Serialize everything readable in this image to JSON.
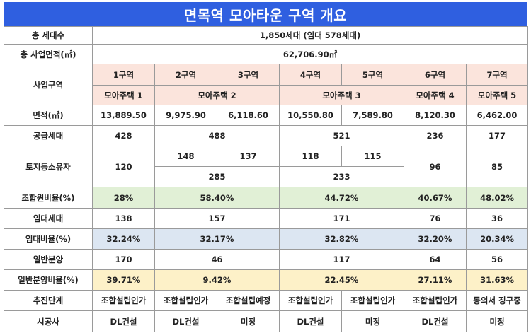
{
  "title": "면목역 모아타운 구역 개요",
  "summary": {
    "households_label": "총 세대수",
    "households_value": "1,850세대 (임대 578세대)",
    "area_label": "총 사업면적(㎡)",
    "area_value": "62,706.90㎡"
  },
  "header": {
    "zone_label": "사업구역",
    "zones": [
      "1구역",
      "2구역",
      "3구역",
      "4구역",
      "5구역",
      "6구역",
      "7구역"
    ],
    "housing": [
      "모아주택 1",
      "모아주택 2",
      "모아주택 3",
      "모아주택 4",
      "모아주택 5"
    ]
  },
  "rows": {
    "area": {
      "label": "면적(㎡)",
      "values": [
        "13,889.50",
        "9,975.90",
        "6,118.60",
        "10,550.80",
        "7,589.80",
        "8,120.30",
        "6,462.00"
      ]
    },
    "supply": {
      "label": "공급세대",
      "values": [
        "428",
        "488",
        "521",
        "236",
        "177"
      ]
    },
    "owners": {
      "label": "토지등소유자",
      "z1": "120",
      "z2": "148",
      "z3": "137",
      "z23_total": "285",
      "z4": "118",
      "z5": "115",
      "z45_total": "233",
      "z6": "96",
      "z7": "85"
    },
    "union_rate": {
      "label": "조합원비율(%)",
      "values": [
        "28%",
        "58.40%",
        "44.72%",
        "40.67%",
        "48.02%"
      ]
    },
    "rental": {
      "label": "임대세대",
      "values": [
        "138",
        "157",
        "171",
        "76",
        "36"
      ]
    },
    "rental_rate": {
      "label": "임대비율(%)",
      "values": [
        "32.24%",
        "32.17%",
        "32.82%",
        "32.20%",
        "20.34%"
      ]
    },
    "general": {
      "label": "일반분양",
      "values": [
        "170",
        "46",
        "117",
        "64",
        "56"
      ]
    },
    "general_rate": {
      "label": "일반분양비율(%)",
      "values": [
        "39.71%",
        "9.42%",
        "22.45%",
        "27.11%",
        "31.63%"
      ]
    },
    "stage": {
      "label": "추진단계",
      "values": [
        "조합설립인가",
        "조합설립인가",
        "조합설립예정",
        "조합설립인가",
        "조합설립인가",
        "조합설립인가",
        "동의서 징구중"
      ]
    },
    "builder": {
      "label": "시공사",
      "values": [
        "DL건설",
        "DL건설",
        "미정",
        "DL건설",
        "미정",
        "DL건설",
        "미정"
      ]
    }
  }
}
